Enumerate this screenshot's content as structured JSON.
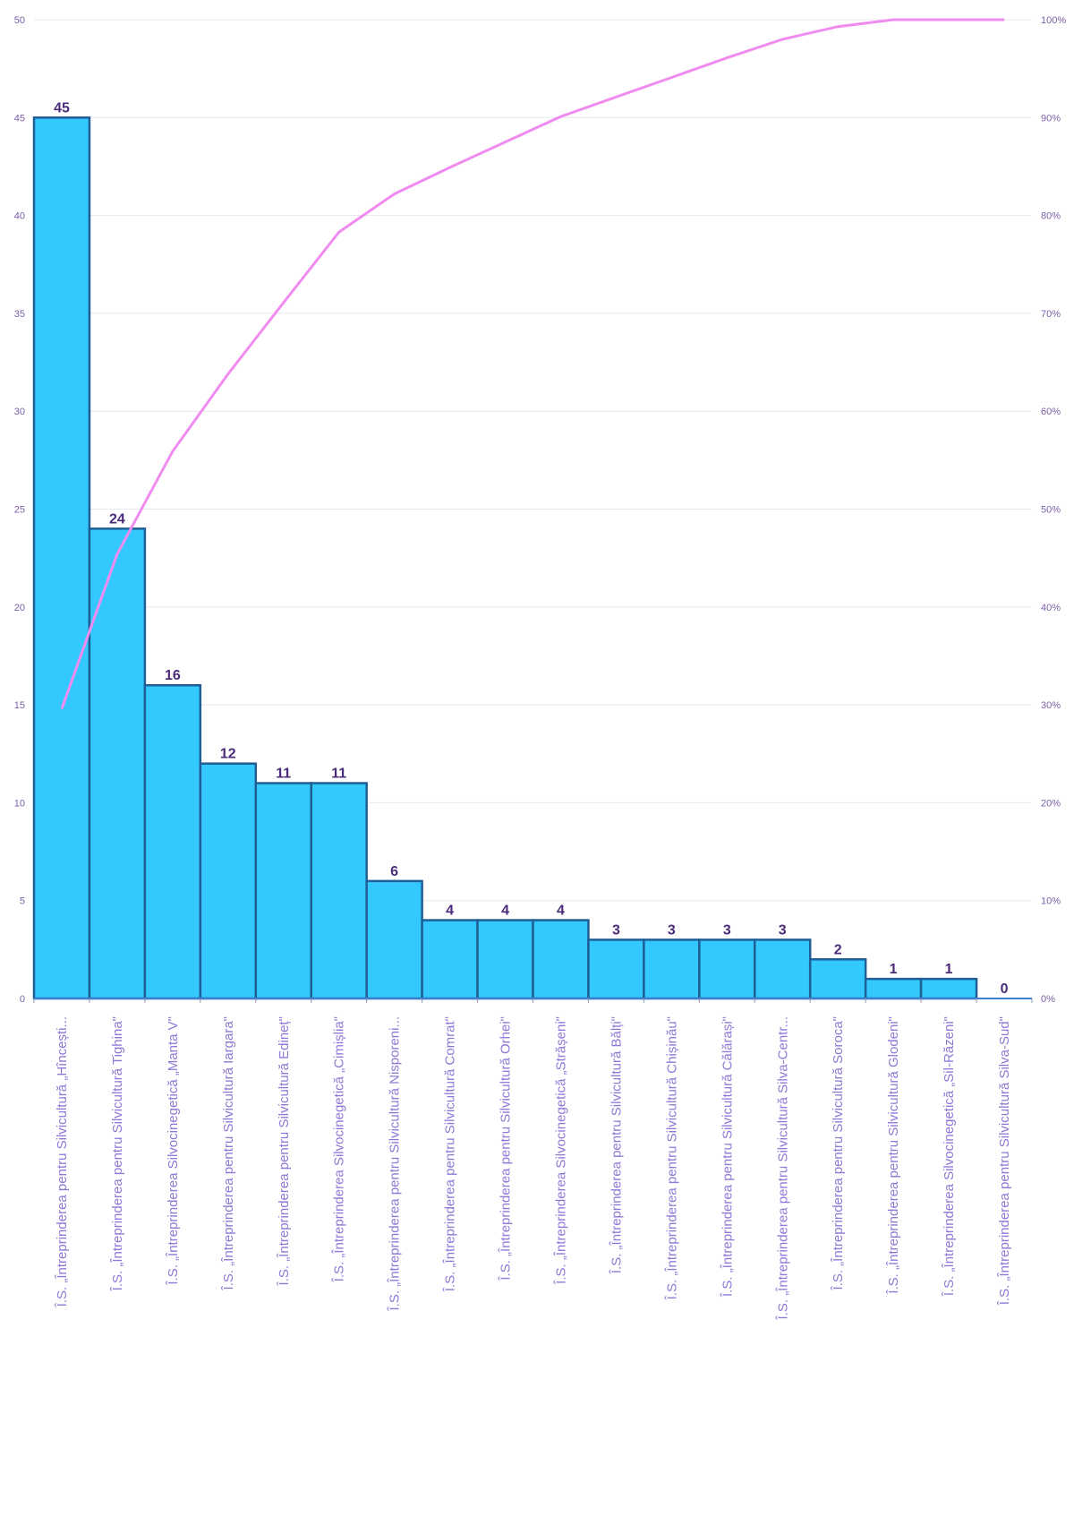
{
  "chart_data": {
    "type": "bar",
    "title": "",
    "categories": [
      "Î.S. „Întreprinderea pentru Silvicultură „Hîncești...",
      "Î.S. „Întreprinderea pentru Silvicultură Tighina\"",
      "Î.S. „Întreprinderea Silvocinegetică „Manta V\"",
      "Î.S. „Întreprinderea pentru Silvicultură Iargara\"",
      "Î.S. „Întreprinderea pentru Silvicultură Edineț\"",
      "Î.S. „Întreprinderea Silvocinegetică „Cimișlia\"",
      "Î.S. „Întreprinderea pentru Silvicultură Nisporeni...",
      "Î.S. „Întreprinderea pentru Silvicultură Comrat\"",
      "Î.S. „Întreprinderea pentru Silvicultură Orhei\"",
      "Î.S. „Întreprinderea Silvocinegetică „Strășeni\"",
      "Î.S. „Întreprinderea pentru Silvicultură Bălți\"",
      "Î.S. „Întreprinderea pentru Silvicultură Chișinău\"",
      "Î.S. „Întreprinderea pentru Silvicultură Călărași\"",
      "Î.S. „Întreprinderea pentru Silvicultură Silva-Centr...",
      "Î.S. „Întreprinderea pentru Silvicultură Soroca\"",
      "Î.S. „Întreprinderea pentru Silvicultură Glodeni\"",
      "Î.S. „Întreprinderea Silvocinegetică „Sil-Răzeni\"",
      "Î.S. „Întreprinderea pentru Silvicultură Silva-Sud\""
    ],
    "series": [
      {
        "type": "bar",
        "values": [
          45,
          24,
          16,
          12,
          11,
          11,
          6,
          4,
          4,
          4,
          3,
          3,
          3,
          3,
          2,
          1,
          1,
          0
        ]
      },
      {
        "type": "line",
        "axis": "right",
        "values": [
          29.6,
          45.4,
          55.9,
          63.8,
          71.1,
          78.3,
          82.2,
          84.9,
          87.5,
          90.1,
          92.1,
          94.1,
          96.1,
          98.0,
          99.3,
          100.0,
          100.0,
          100.0
        ]
      }
    ],
    "data_labels": [
      "45",
      "24",
      "16",
      "12",
      "11",
      "11",
      "6",
      "4",
      "4",
      "4",
      "3",
      "3",
      "3",
      "3",
      "2",
      "1",
      "1",
      "0"
    ],
    "y_left": {
      "range": [
        0,
        50
      ],
      "ticks": [
        "0",
        "5",
        "10",
        "15",
        "20",
        "25",
        "30",
        "35",
        "40",
        "45",
        "50"
      ]
    },
    "y_right": {
      "range": [
        0,
        100
      ],
      "ticks": [
        "0%",
        "10%",
        "20%",
        "30%",
        "40%",
        "50%",
        "60%",
        "70%",
        "80%",
        "90%",
        "100%"
      ]
    },
    "grid": true,
    "legend": "none",
    "colors": {
      "bar_fill": "#33c9ff",
      "bar_stroke": "#1f5f96",
      "line": "#f08cf0",
      "tick_text": "#7a5fa6",
      "category_text": "#8f78d6",
      "data_label_text": "#4b2a7a"
    }
  }
}
